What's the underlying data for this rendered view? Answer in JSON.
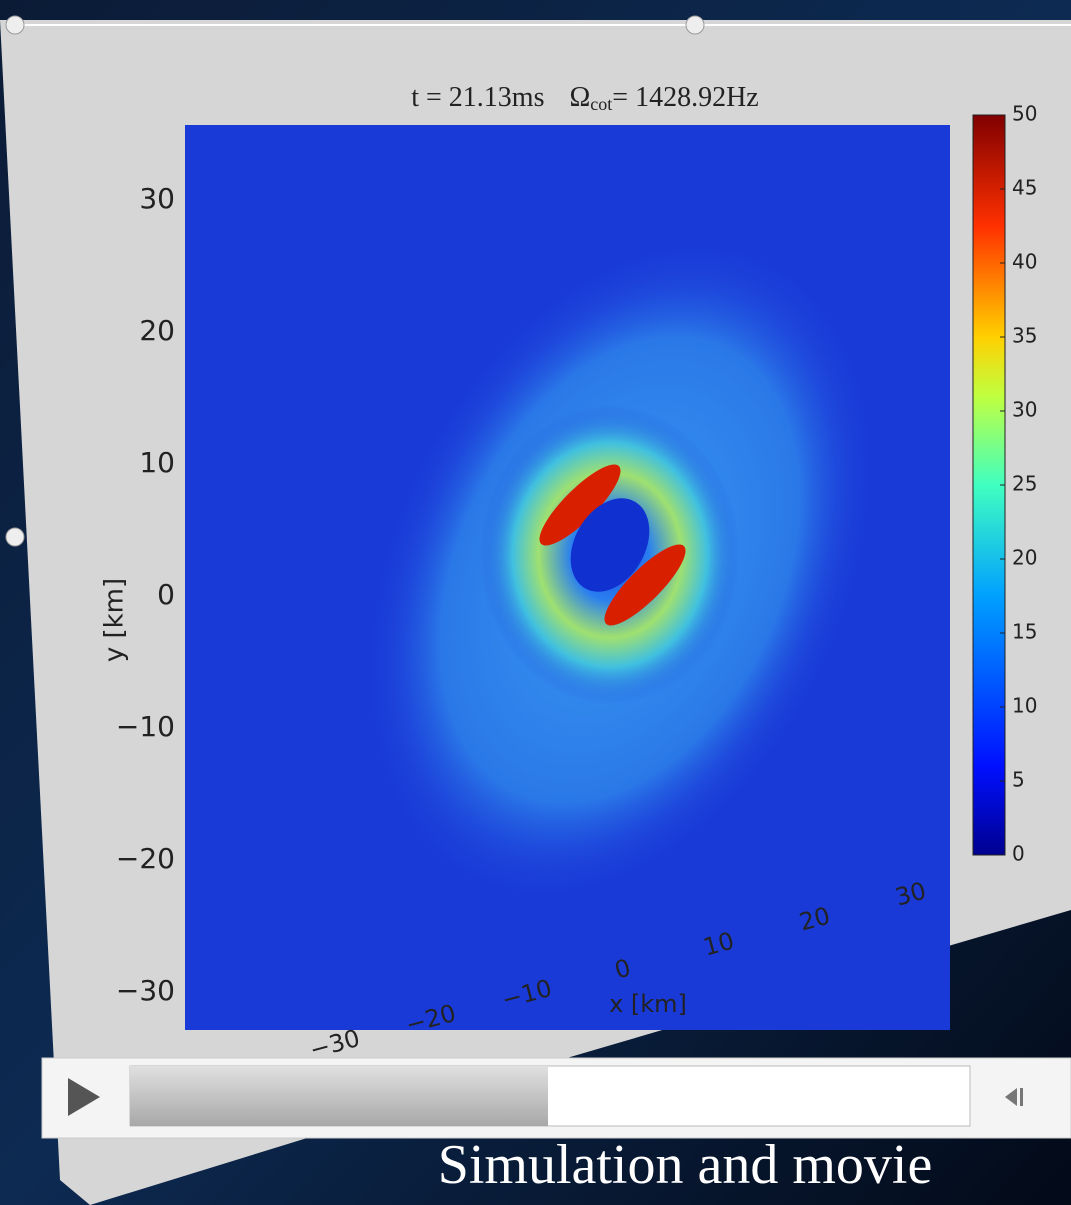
{
  "slide": {
    "plot": {
      "title_time": "t = 21.13ms",
      "title_symbol": "Ω",
      "title_sub": "cot",
      "title_value": "= 1428.92Hz",
      "x_label": "x [km]",
      "y_label": "y [km]",
      "x_ticks": [
        "−30",
        "−20",
        "−10",
        "0",
        "10",
        "20",
        "30"
      ],
      "y_ticks": [
        "30",
        "20",
        "10",
        "0",
        "−10",
        "−20",
        "−30"
      ],
      "colorbar_ticks": [
        "50",
        "45",
        "40",
        "35",
        "30",
        "25",
        "20",
        "15",
        "10",
        "5",
        "0"
      ]
    },
    "caption": "Simulation and movie"
  }
}
